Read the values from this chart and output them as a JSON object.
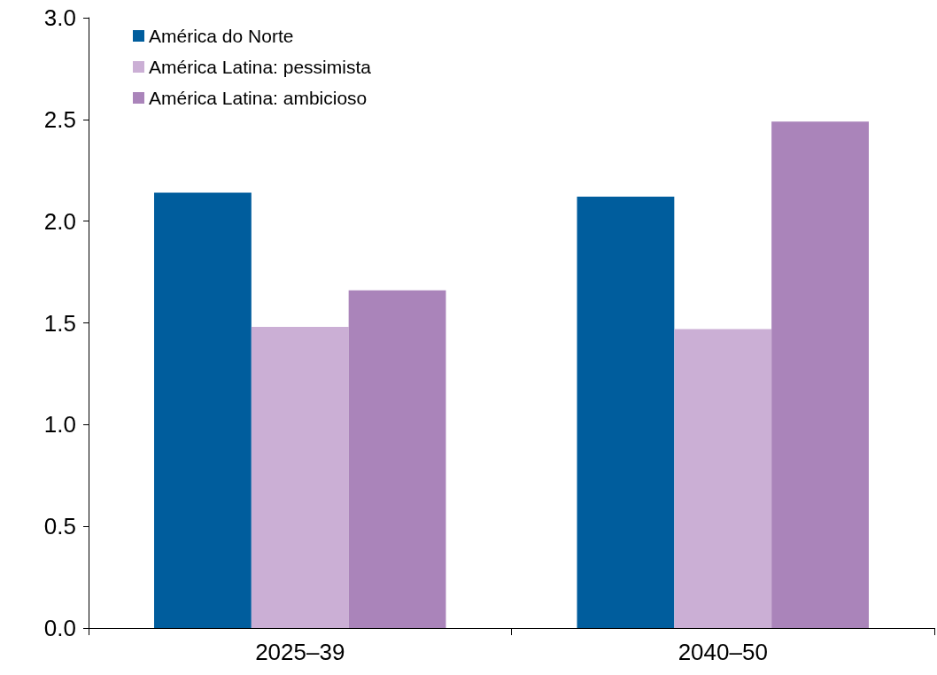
{
  "chart_data": {
    "type": "bar",
    "categories": [
      "2025–39",
      "2040–50"
    ],
    "series": [
      {
        "name": "América do Norte",
        "color": "#005d9d",
        "values": [
          2.14,
          2.12
        ]
      },
      {
        "name": "América Latina: pessimista",
        "color": "#cbafd5",
        "values": [
          1.48,
          1.47
        ]
      },
      {
        "name": "América Latina: ambicioso",
        "color": "#aa84ba",
        "values": [
          1.66,
          2.49
        ]
      }
    ],
    "ylim": [
      0,
      3
    ],
    "yticks": [
      {
        "value": 0,
        "label": "0.0"
      },
      {
        "value": 0.5,
        "label": "0.5"
      },
      {
        "value": 1,
        "label": "1.0"
      },
      {
        "value": 1.5,
        "label": "1.5"
      },
      {
        "value": 2,
        "label": "2.0"
      },
      {
        "value": 2.5,
        "label": "2.5"
      },
      {
        "value": 3,
        "label": "3.0"
      }
    ],
    "grid": false,
    "legend": "top left"
  }
}
